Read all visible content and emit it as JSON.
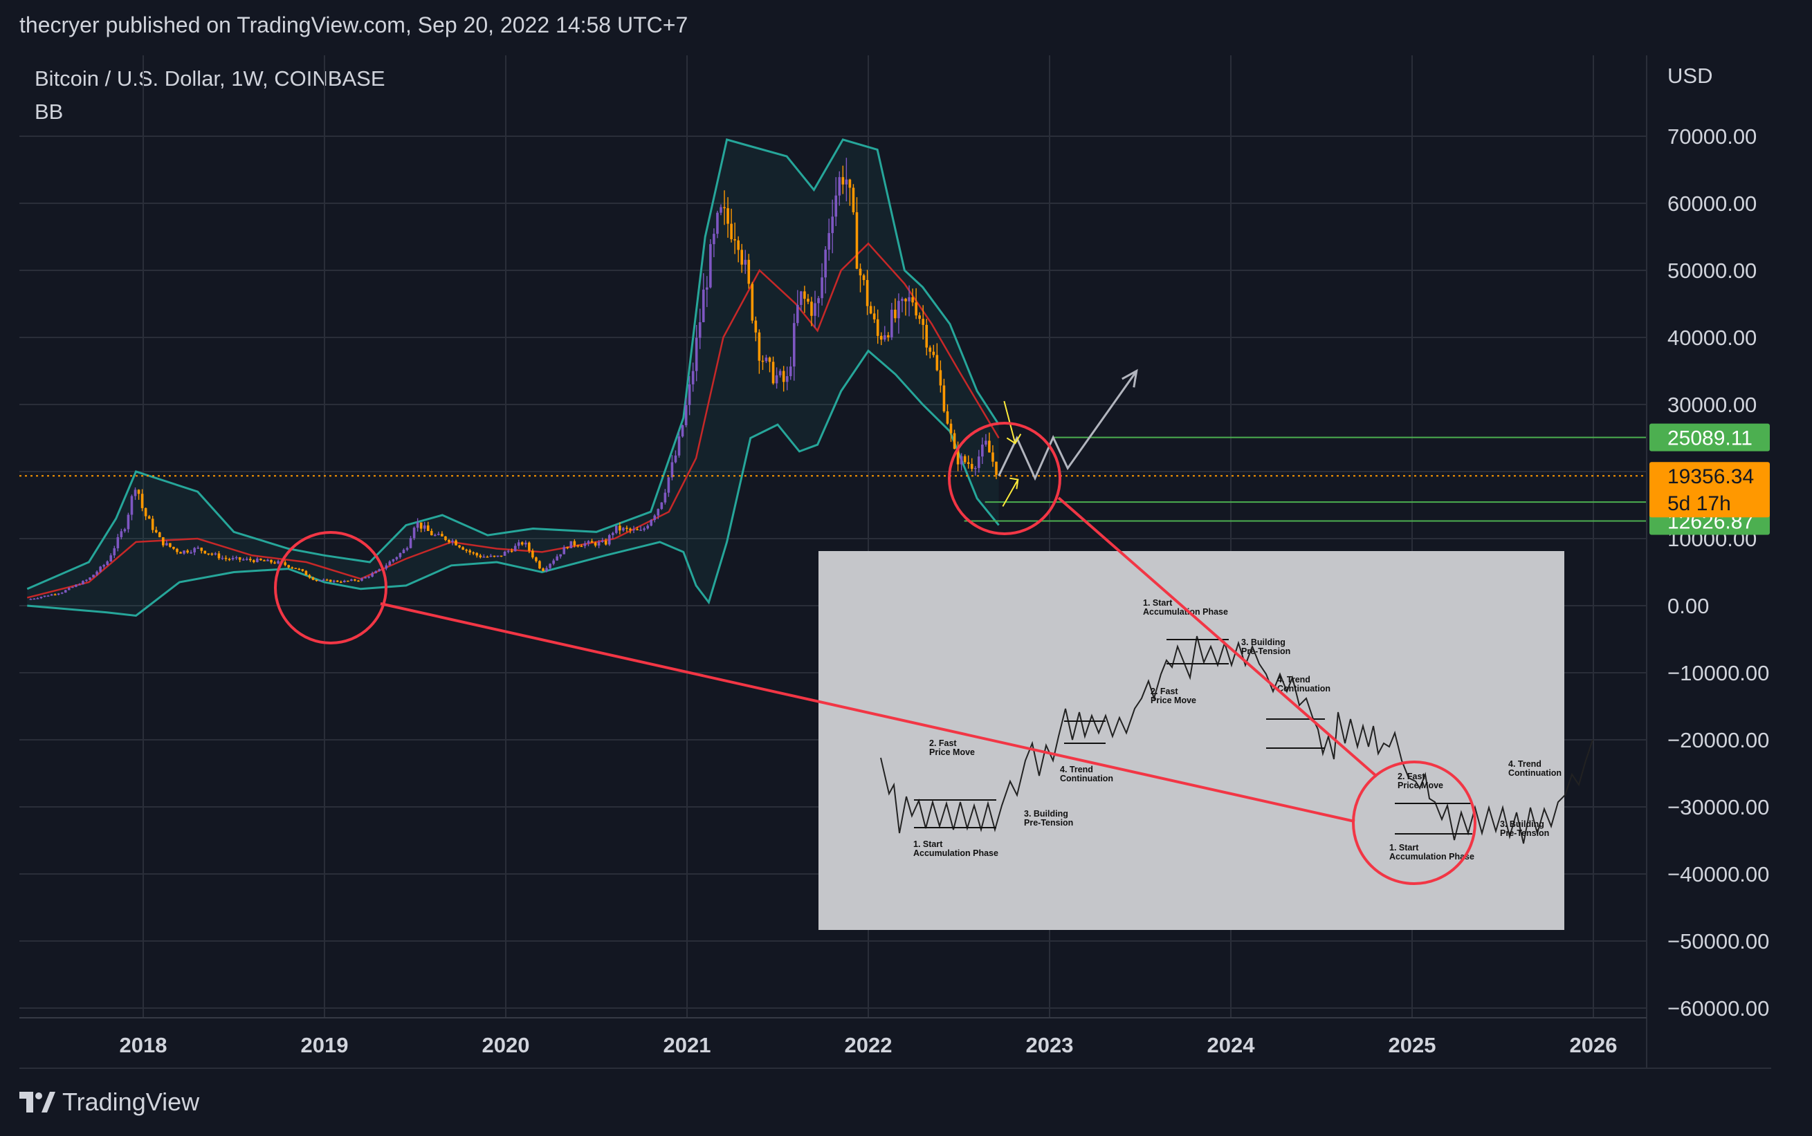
{
  "header": {
    "publisher_line": "thecryer published on TradingView.com, Sep 20, 2022 14:58 UTC+7"
  },
  "legend": {
    "symbol_line": "Bitcoin / U.S. Dollar, 1W, COINBASE",
    "indicator": "BB"
  },
  "footer": {
    "brand": "TradingView"
  },
  "colors": {
    "background": "#131722",
    "grid": "#2a2e39",
    "bb_band": "#26a69a",
    "bb_basis": "#c62828",
    "candle_up": "#7e57c2",
    "candle_down": "#ff9800",
    "annotation_red": "#f23645",
    "level_green": "#4caf50",
    "price_orange": "#ff9800",
    "projection": "#b2b5be",
    "arrow_yellow": "#ffeb3b"
  },
  "chart_data": {
    "type": "candlestick",
    "symbol": "Bitcoin / U.S. Dollar",
    "timeframe": "1W",
    "exchange": "COINBASE",
    "currency": "USD",
    "indicator": "BB",
    "ylim": [
      -63000,
      76000
    ],
    "y_ticks": [
      "70000.00",
      "60000.00",
      "50000.00",
      "40000.00",
      "30000.00",
      "20000.00",
      "10000.00",
      "0.00",
      "−10000.00",
      "−20000.00",
      "−30000.00",
      "−40000.00",
      "−50000.00",
      "−60000.00"
    ],
    "y_tick_values": [
      70000,
      60000,
      50000,
      40000,
      30000,
      20000,
      10000,
      0,
      -10000,
      -20000,
      -30000,
      -40000,
      -50000,
      -60000
    ],
    "x_ticks": [
      "2018",
      "2019",
      "2020",
      "2021",
      "2022",
      "2023",
      "2024",
      "2025",
      "2026"
    ],
    "x_tick_values": [
      2018,
      2019,
      2020,
      2021,
      2022,
      2023,
      2024,
      2025,
      2026
    ],
    "xlim": [
      2017.36,
      2026.36
    ],
    "grid": true,
    "price_line": {
      "value": 19356.34,
      "label": "19356.34",
      "countdown": "5d 17h"
    },
    "levels": [
      {
        "value": 25089.11,
        "label": "25089.11"
      },
      {
        "value": 15449.98,
        "label": "15449.98"
      },
      {
        "value": 12626.87,
        "label": "12626.87"
      }
    ],
    "price_path": [
      [
        2017.36,
        900
      ],
      [
        2017.55,
        2000
      ],
      [
        2017.7,
        4000
      ],
      [
        2017.8,
        6500
      ],
      [
        2017.9,
        12000
      ],
      [
        2017.96,
        18500
      ],
      [
        2018.0,
        14000
      ],
      [
        2018.1,
        9500
      ],
      [
        2018.2,
        8000
      ],
      [
        2018.3,
        8500
      ],
      [
        2018.45,
        7000
      ],
      [
        2018.6,
        6800
      ],
      [
        2018.75,
        6400
      ],
      [
        2018.85,
        5500
      ],
      [
        2018.95,
        3800
      ],
      [
        2019.1,
        3600
      ],
      [
        2019.2,
        3900
      ],
      [
        2019.3,
        5200
      ],
      [
        2019.45,
        8500
      ],
      [
        2019.5,
        12500
      ],
      [
        2019.6,
        10500
      ],
      [
        2019.7,
        9800
      ],
      [
        2019.8,
        8000
      ],
      [
        2019.85,
        7400
      ],
      [
        2019.95,
        7200
      ],
      [
        2020.1,
        9500
      ],
      [
        2020.2,
        5200
      ],
      [
        2020.35,
        9200
      ],
      [
        2020.55,
        9300
      ],
      [
        2020.6,
        11500
      ],
      [
        2020.75,
        11000
      ],
      [
        2020.85,
        15000
      ],
      [
        2020.95,
        23500
      ],
      [
        2021.02,
        33000
      ],
      [
        2021.1,
        48000
      ],
      [
        2021.18,
        58000
      ],
      [
        2021.28,
        56000
      ],
      [
        2021.4,
        38000
      ],
      [
        2021.45,
        35000
      ],
      [
        2021.55,
        33000
      ],
      [
        2021.62,
        46000
      ],
      [
        2021.72,
        44000
      ],
      [
        2021.8,
        60000
      ],
      [
        2021.87,
        65500
      ],
      [
        2021.95,
        50000
      ],
      [
        2022.05,
        40000
      ],
      [
        2022.15,
        43000
      ],
      [
        2022.25,
        46000
      ],
      [
        2022.35,
        38000
      ],
      [
        2022.42,
        30000
      ],
      [
        2022.48,
        22000
      ],
      [
        2022.58,
        21000
      ],
      [
        2022.65,
        24000
      ],
      [
        2022.72,
        19356
      ]
    ],
    "bb_upper": [
      [
        2017.36,
        2500
      ],
      [
        2017.7,
        6500
      ],
      [
        2017.85,
        13000
      ],
      [
        2017.96,
        20000
      ],
      [
        2018.3,
        17000
      ],
      [
        2018.5,
        11000
      ],
      [
        2018.8,
        8500
      ],
      [
        2019.0,
        7500
      ],
      [
        2019.25,
        6500
      ],
      [
        2019.45,
        12000
      ],
      [
        2019.65,
        13500
      ],
      [
        2019.9,
        10500
      ],
      [
        2020.15,
        11500
      ],
      [
        2020.5,
        11000
      ],
      [
        2020.8,
        14000
      ],
      [
        2020.98,
        28000
      ],
      [
        2021.1,
        55000
      ],
      [
        2021.22,
        69500
      ],
      [
        2021.35,
        68500
      ],
      [
        2021.55,
        67000
      ],
      [
        2021.7,
        62000
      ],
      [
        2021.86,
        69500
      ],
      [
        2022.05,
        68000
      ],
      [
        2022.2,
        50000
      ],
      [
        2022.3,
        47500
      ],
      [
        2022.45,
        42000
      ],
      [
        2022.6,
        32000
      ],
      [
        2022.72,
        27000
      ]
    ],
    "bb_basis": [
      [
        2017.36,
        1200
      ],
      [
        2017.7,
        3500
      ],
      [
        2017.96,
        9500
      ],
      [
        2018.3,
        10000
      ],
      [
        2018.6,
        7500
      ],
      [
        2018.9,
        6500
      ],
      [
        2019.2,
        4000
      ],
      [
        2019.45,
        7000
      ],
      [
        2019.7,
        9500
      ],
      [
        2019.95,
        8500
      ],
      [
        2020.2,
        8000
      ],
      [
        2020.6,
        10000
      ],
      [
        2020.9,
        14000
      ],
      [
        2021.05,
        22000
      ],
      [
        2021.2,
        40000
      ],
      [
        2021.4,
        50000
      ],
      [
        2021.6,
        45000
      ],
      [
        2021.72,
        41000
      ],
      [
        2021.85,
        50000
      ],
      [
        2022.0,
        54000
      ],
      [
        2022.2,
        48000
      ],
      [
        2022.35,
        42000
      ],
      [
        2022.5,
        35000
      ],
      [
        2022.72,
        25000
      ]
    ],
    "bb_lower": [
      [
        2017.36,
        0
      ],
      [
        2017.8,
        -1000
      ],
      [
        2017.96,
        -1500
      ],
      [
        2018.2,
        3500
      ],
      [
        2018.5,
        5000
      ],
      [
        2018.8,
        5500
      ],
      [
        2019.0,
        3500
      ],
      [
        2019.2,
        2500
      ],
      [
        2019.45,
        3000
      ],
      [
        2019.7,
        6000
      ],
      [
        2019.95,
        6500
      ],
      [
        2020.2,
        5000
      ],
      [
        2020.55,
        7500
      ],
      [
        2020.85,
        9500
      ],
      [
        2020.98,
        8000
      ],
      [
        2021.05,
        3000
      ],
      [
        2021.12,
        500
      ],
      [
        2021.22,
        9500
      ],
      [
        2021.35,
        25000
      ],
      [
        2021.5,
        27000
      ],
      [
        2021.62,
        23000
      ],
      [
        2021.72,
        24000
      ],
      [
        2021.85,
        32000
      ],
      [
        2022.0,
        38000
      ],
      [
        2022.15,
        34500
      ],
      [
        2022.3,
        30000
      ],
      [
        2022.45,
        26000
      ],
      [
        2022.6,
        16000
      ],
      [
        2022.72,
        12000
      ]
    ],
    "projection_path": [
      [
        2022.72,
        19356
      ],
      [
        2022.82,
        25000
      ],
      [
        2022.92,
        19000
      ],
      [
        2023.02,
        25089
      ],
      [
        2023.1,
        20500
      ],
      [
        2023.48,
        35000
      ]
    ],
    "callouts": [
      {
        "center": [
          2019.02,
          6000
        ],
        "target": "left accumulation in inset"
      },
      {
        "center": [
          2022.72,
          19500
        ],
        "target": "right accumulation in inset"
      }
    ],
    "inset": {
      "labels_left": [
        "1. Start",
        "Accumulation Phase",
        "2. Fast",
        "Price Move",
        "3. Building",
        "Pre-Tension",
        "4. Trend",
        "Continuation"
      ],
      "labels_top": [
        "1. Start",
        "Accumulation Phase",
        "2. Fast",
        "Price Move",
        "3. Building",
        "Pre-Tension",
        "4. Trend",
        "Continuation"
      ],
      "labels_right": [
        "1. Start",
        "Accumulation Phase",
        "2. Fast",
        "Price Move",
        "3. Building",
        "Pre-Tension",
        "4. Trend",
        "Continuation"
      ]
    }
  }
}
